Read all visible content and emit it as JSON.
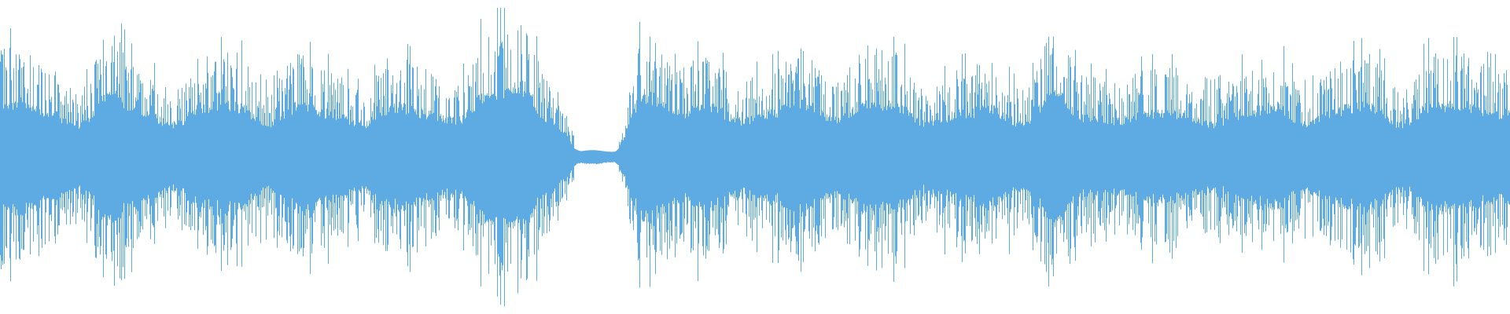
{
  "chart_data": {
    "type": "area",
    "title": "",
    "xlabel": "",
    "ylabel": "",
    "ylim": [
      -1,
      1
    ],
    "grid": false,
    "legend": "none",
    "color": "#5DABE2",
    "background": "#FFFFFF",
    "symmetric": true,
    "envelope": [
      0.75,
      0.6,
      0.45,
      0.85,
      0.6,
      0.45,
      0.7,
      0.7,
      0.45,
      0.7,
      0.6,
      0.45,
      0.7,
      0.6,
      0.5,
      0.85,
      0.98,
      0.5,
      0.08,
      0.1,
      0.85,
      0.6,
      0.7,
      0.5,
      0.6,
      0.75,
      0.5,
      0.75,
      0.7,
      0.45,
      0.6,
      0.65,
      0.45,
      0.85,
      0.55,
      0.5,
      0.6,
      0.6,
      0.45,
      0.6,
      0.7,
      0.45,
      0.65,
      0.7,
      0.45,
      0.7,
      0.7,
      0.6
    ]
  }
}
